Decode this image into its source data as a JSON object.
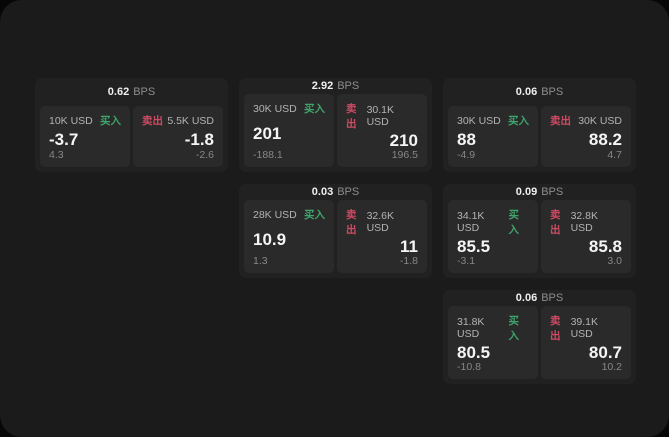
{
  "labels": {
    "buy": "买入",
    "sell": "卖出",
    "bps_unit": "BPS"
  },
  "colors": {
    "buy_green": "#3fa36c",
    "sell_red": "#cf4a63",
    "window_bg": "#1b1b1b",
    "card_bg": "#212121",
    "panel_bg": "#2a2a2a"
  },
  "cards": [
    {
      "row": "1",
      "col": "1",
      "bps": "0.62",
      "buy": {
        "notional": "10K USD",
        "price": "-3.7",
        "delta": "4.3"
      },
      "sell": {
        "notional": "5.5K USD",
        "price": "-1.8",
        "delta": "-2.6"
      }
    },
    {
      "row": "1",
      "col": "2",
      "bps": "2.92",
      "buy": {
        "notional": "30K USD",
        "price": "201",
        "delta": "-188.1"
      },
      "sell": {
        "notional": "30.1K USD",
        "price": "210",
        "delta": "196.5"
      }
    },
    {
      "row": "1",
      "col": "3",
      "bps": "0.06",
      "buy": {
        "notional": "30K USD",
        "price": "88",
        "delta": "-4.9"
      },
      "sell": {
        "notional": "30K USD",
        "price": "88.2",
        "delta": "4.7"
      }
    },
    {
      "row": "2",
      "col": "2",
      "bps": "0.03",
      "buy": {
        "notional": "28K USD",
        "price": "10.9",
        "delta": "1.3"
      },
      "sell": {
        "notional": "32.6K USD",
        "price": "11",
        "delta": "-1.8"
      }
    },
    {
      "row": "2",
      "col": "3",
      "bps": "0.09",
      "buy": {
        "notional": "34.1K USD",
        "price": "85.5",
        "delta": "-3.1"
      },
      "sell": {
        "notional": "32.8K USD",
        "price": "85.8",
        "delta": "3.0"
      }
    },
    {
      "row": "3",
      "col": "3",
      "bps": "0.06",
      "buy": {
        "notional": "31.8K USD",
        "price": "80.5",
        "delta": "-10.8"
      },
      "sell": {
        "notional": "39.1K USD",
        "price": "80.7",
        "delta": "10.2"
      }
    }
  ]
}
